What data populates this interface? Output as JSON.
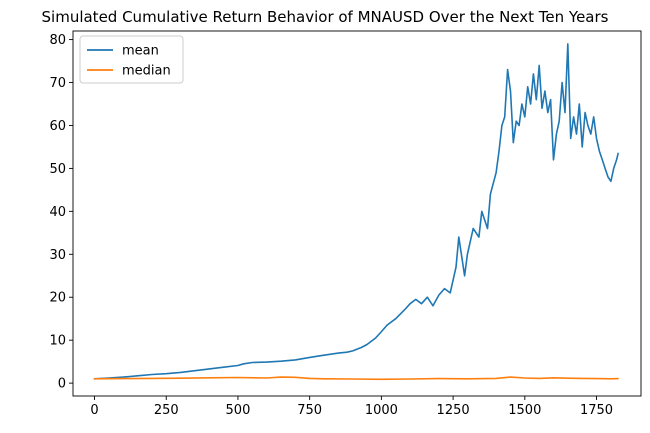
{
  "chart_data": {
    "type": "line",
    "title": "Simulated Cumulative Return Behavior of MNAUSD Over the Next Ten Years",
    "xlabel": "",
    "ylabel": "",
    "xlim": [
      -75,
      1905
    ],
    "ylim": [
      -3,
      82
    ],
    "xticks": [
      0,
      250,
      500,
      750,
      1000,
      1250,
      1500,
      1750
    ],
    "yticks": [
      0,
      10,
      20,
      30,
      40,
      50,
      60,
      70,
      80
    ],
    "grid": false,
    "legend_position": "top-left",
    "series": [
      {
        "name": "mean",
        "color": "#1f77b4",
        "x": [
          0,
          50,
          100,
          150,
          200,
          250,
          300,
          350,
          400,
          450,
          500,
          520,
          550,
          600,
          650,
          700,
          750,
          780,
          800,
          850,
          880,
          900,
          930,
          950,
          980,
          1000,
          1020,
          1050,
          1080,
          1100,
          1120,
          1140,
          1160,
          1180,
          1200,
          1220,
          1240,
          1260,
          1270,
          1290,
          1300,
          1320,
          1340,
          1350,
          1370,
          1380,
          1400,
          1410,
          1420,
          1430,
          1440,
          1450,
          1460,
          1470,
          1480,
          1490,
          1500,
          1510,
          1520,
          1530,
          1540,
          1550,
          1560,
          1570,
          1580,
          1590,
          1600,
          1610,
          1620,
          1630,
          1640,
          1650,
          1660,
          1670,
          1680,
          1690,
          1700,
          1710,
          1720,
          1730,
          1740,
          1750,
          1760,
          1770,
          1780,
          1790,
          1800,
          1810,
          1820,
          1825
        ],
        "y": [
          1.0,
          1.2,
          1.4,
          1.7,
          2.0,
          2.2,
          2.5,
          2.9,
          3.3,
          3.7,
          4.1,
          4.5,
          4.8,
          4.9,
          5.1,
          5.4,
          6.0,
          6.3,
          6.5,
          7.0,
          7.2,
          7.5,
          8.3,
          9.0,
          10.5,
          12.0,
          13.5,
          15.0,
          17.0,
          18.5,
          19.5,
          18.5,
          20.0,
          18.0,
          20.5,
          22.0,
          21.0,
          27.0,
          34.0,
          25.0,
          30.0,
          36.0,
          34.0,
          40.0,
          36.0,
          44.0,
          49.0,
          54.0,
          60.0,
          62.0,
          73.0,
          68.0,
          56.0,
          61.0,
          60.0,
          65.0,
          62.0,
          69.0,
          65.0,
          72.0,
          66.0,
          74.0,
          64.0,
          68.0,
          63.0,
          66.0,
          52.0,
          58.0,
          61.0,
          70.0,
          63.0,
          79.0,
          57.0,
          62.0,
          58.0,
          65.0,
          55.0,
          63.0,
          60.0,
          58.0,
          62.0,
          57.0,
          54.0,
          52.0,
          50.0,
          48.0,
          47.0,
          50.0,
          52.0,
          53.5
        ]
      },
      {
        "name": "median",
        "color": "#ff7f0e",
        "x": [
          0,
          100,
          200,
          300,
          400,
          500,
          600,
          650,
          700,
          750,
          800,
          900,
          1000,
          1100,
          1200,
          1300,
          1400,
          1450,
          1500,
          1550,
          1600,
          1650,
          1700,
          1750,
          1800,
          1825
        ],
        "y": [
          1.0,
          1.05,
          1.1,
          1.15,
          1.25,
          1.3,
          1.2,
          1.4,
          1.35,
          1.1,
          1.0,
          0.95,
          0.9,
          0.95,
          1.05,
          1.0,
          1.1,
          1.4,
          1.2,
          1.1,
          1.25,
          1.15,
          1.1,
          1.05,
          1.0,
          1.05
        ]
      }
    ]
  }
}
